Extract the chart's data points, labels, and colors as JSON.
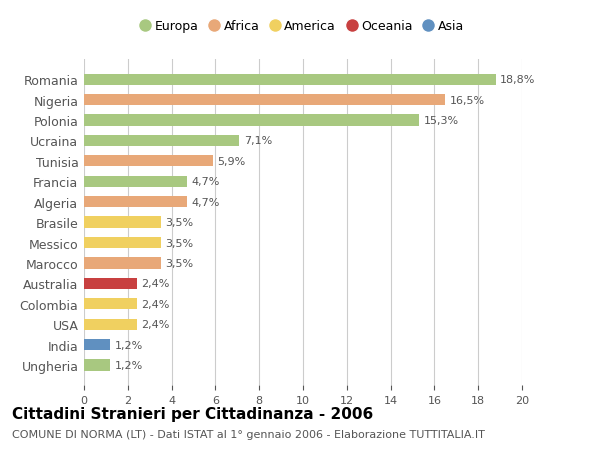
{
  "categories": [
    "Romania",
    "Nigeria",
    "Polonia",
    "Ucraina",
    "Tunisia",
    "Francia",
    "Algeria",
    "Brasile",
    "Messico",
    "Marocco",
    "Australia",
    "Colombia",
    "USA",
    "India",
    "Ungheria"
  ],
  "values": [
    18.8,
    16.5,
    15.3,
    7.1,
    5.9,
    4.7,
    4.7,
    3.5,
    3.5,
    3.5,
    2.4,
    2.4,
    2.4,
    1.2,
    1.2
  ],
  "labels": [
    "18,8%",
    "16,5%",
    "15,3%",
    "7,1%",
    "5,9%",
    "4,7%",
    "4,7%",
    "3,5%",
    "3,5%",
    "3,5%",
    "2,4%",
    "2,4%",
    "2,4%",
    "1,2%",
    "1,2%"
  ],
  "continents": [
    "Europa",
    "Africa",
    "Europa",
    "Europa",
    "Africa",
    "Europa",
    "Africa",
    "America",
    "America",
    "Africa",
    "Oceania",
    "America",
    "America",
    "Asia",
    "Europa"
  ],
  "continent_colors": {
    "Europa": "#a8c880",
    "Africa": "#e8a878",
    "America": "#f0d060",
    "Oceania": "#c84040",
    "Asia": "#6090c0"
  },
  "legend_order": [
    "Europa",
    "Africa",
    "America",
    "Oceania",
    "Asia"
  ],
  "xlim": [
    0,
    20
  ],
  "xticks": [
    0,
    2,
    4,
    6,
    8,
    10,
    12,
    14,
    16,
    18,
    20
  ],
  "title": "Cittadini Stranieri per Cittadinanza - 2006",
  "subtitle": "COMUNE DI NORMA (LT) - Dati ISTAT al 1° gennaio 2006 - Elaborazione TUTTITALIA.IT",
  "title_fontsize": 11,
  "subtitle_fontsize": 8,
  "bar_height": 0.55,
  "background_color": "#ffffff",
  "grid_color": "#cccccc"
}
